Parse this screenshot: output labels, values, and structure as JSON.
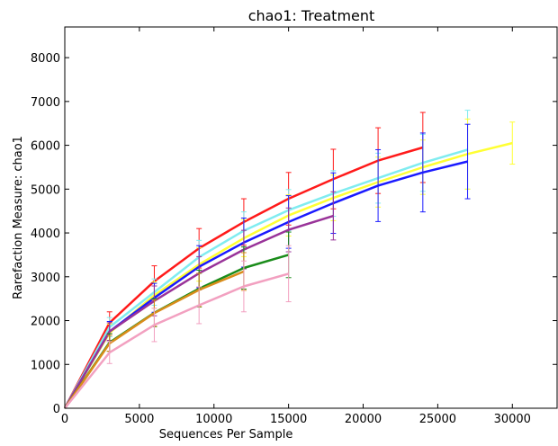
{
  "chart_data": {
    "type": "line",
    "title": "chao1: Treatment",
    "xlabel": "Sequences Per Sample",
    "ylabel": "Rarefaction Measure: chao1",
    "xlim": [
      0,
      33000
    ],
    "ylim": [
      0,
      8700
    ],
    "xticks": [
      0,
      5000,
      10000,
      15000,
      20000,
      25000,
      30000
    ],
    "yticks": [
      0,
      1000,
      2000,
      3000,
      4000,
      5000,
      6000,
      7000,
      8000
    ],
    "grid": false,
    "legend": "none",
    "series": [
      {
        "color": "#ff1a1a",
        "x": [
          1,
          3000,
          6000,
          9000,
          12000,
          15000,
          18000,
          21000,
          24000
        ],
        "y": [
          0,
          1950,
          2900,
          3650,
          4250,
          4780,
          5230,
          5650,
          5950
        ],
        "err": [
          0,
          250,
          350,
          450,
          530,
          600,
          680,
          750,
          800
        ]
      },
      {
        "color": "#80ecf0",
        "x": [
          1,
          3000,
          6000,
          9000,
          12000,
          15000,
          18000,
          21000,
          24000,
          27000
        ],
        "y": [
          0,
          1850,
          2650,
          3450,
          4050,
          4520,
          4900,
          5250,
          5600,
          5900
        ],
        "err": [
          0,
          220,
          300,
          380,
          430,
          470,
          520,
          570,
          650,
          900
        ]
      },
      {
        "color": "#ffff33",
        "x": [
          1,
          3000,
          6000,
          9000,
          12000,
          15000,
          18000,
          21000,
          24000,
          27000,
          30000
        ],
        "y": [
          0,
          1720,
          2580,
          3280,
          3880,
          4400,
          4800,
          5160,
          5500,
          5800,
          6050
        ],
        "err": [
          0,
          200,
          300,
          380,
          420,
          470,
          520,
          570,
          620,
          800,
          480
        ]
      },
      {
        "color": "#1a1aff",
        "x": [
          1,
          3000,
          6000,
          9000,
          12000,
          15000,
          18000,
          21000,
          24000,
          27000
        ],
        "y": [
          0,
          1750,
          2520,
          3230,
          3780,
          4250,
          4680,
          5080,
          5380,
          5630
        ],
        "err": [
          0,
          230,
          330,
          480,
          560,
          600,
          690,
          820,
          900,
          850
        ]
      },
      {
        "color": "#993399",
        "x": [
          1,
          3000,
          6000,
          9000,
          12000,
          15000,
          18000
        ],
        "y": [
          0,
          1750,
          2450,
          3080,
          3620,
          4070,
          4390
        ],
        "err": [
          0,
          200,
          340,
          380,
          440,
          500,
          550
        ]
      },
      {
        "color": "#1a8c1a",
        "x": [
          1,
          3000,
          6000,
          9000,
          12000,
          15000
        ],
        "y": [
          0,
          1500,
          2180,
          2730,
          3200,
          3500
        ],
        "err": [
          0,
          200,
          320,
          420,
          480,
          520
        ]
      },
      {
        "color": "#d98c1a",
        "x": [
          1,
          3000,
          6000,
          9000,
          12000
        ],
        "y": [
          0,
          1480,
          2170,
          2700,
          3120
        ],
        "err": [
          0,
          180,
          300,
          380,
          430
        ]
      },
      {
        "color": "#f2a0c0",
        "x": [
          1,
          3000,
          6000,
          9000,
          12000,
          15000
        ],
        "y": [
          0,
          1270,
          1900,
          2350,
          2780,
          3070
        ],
        "err": [
          0,
          250,
          380,
          420,
          580,
          640
        ]
      }
    ]
  }
}
